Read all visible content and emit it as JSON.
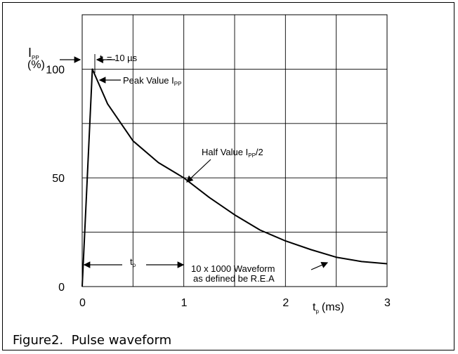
{
  "caption": "Figure2.  Pulse waveform",
  "chart_data": {
    "type": "line",
    "title": "",
    "xlabel": {
      "main": "t",
      "sub": "p",
      "unit": "(ms)"
    },
    "ylabel": {
      "main": "I",
      "sub": "PP",
      "unit": "(%)"
    },
    "xlim": [
      0,
      3
    ],
    "ylim": [
      0,
      125
    ],
    "x_ticks": [
      0,
      1,
      2,
      3
    ],
    "y_ticks": [
      0,
      50,
      100
    ],
    "grid": true,
    "series": [
      {
        "x": [
          0,
          0.01,
          0.1,
          0.25,
          0.5,
          0.75,
          1.0,
          1.25,
          1.5,
          1.75,
          2.0,
          2.25,
          2.5,
          2.75,
          3.0
        ],
        "y": [
          0,
          10,
          100,
          84,
          67,
          57,
          50,
          41,
          33,
          26,
          21,
          17,
          13.5,
          11.5,
          10.5
        ]
      }
    ],
    "annotations": {
      "tr": {
        "main": "t",
        "sub": "r",
        "rest": " = 10 µs"
      },
      "peak": {
        "main": "Peak Value I",
        "sub": "PP"
      },
      "half": {
        "main": "Half Value I",
        "sub": "PP",
        "rest": "/2"
      },
      "tp": {
        "main": "t",
        "sub": "p"
      },
      "waveform_line1": "10 x 1000 Waveform",
      "waveform_line2": "as defined be R.E.A"
    }
  }
}
